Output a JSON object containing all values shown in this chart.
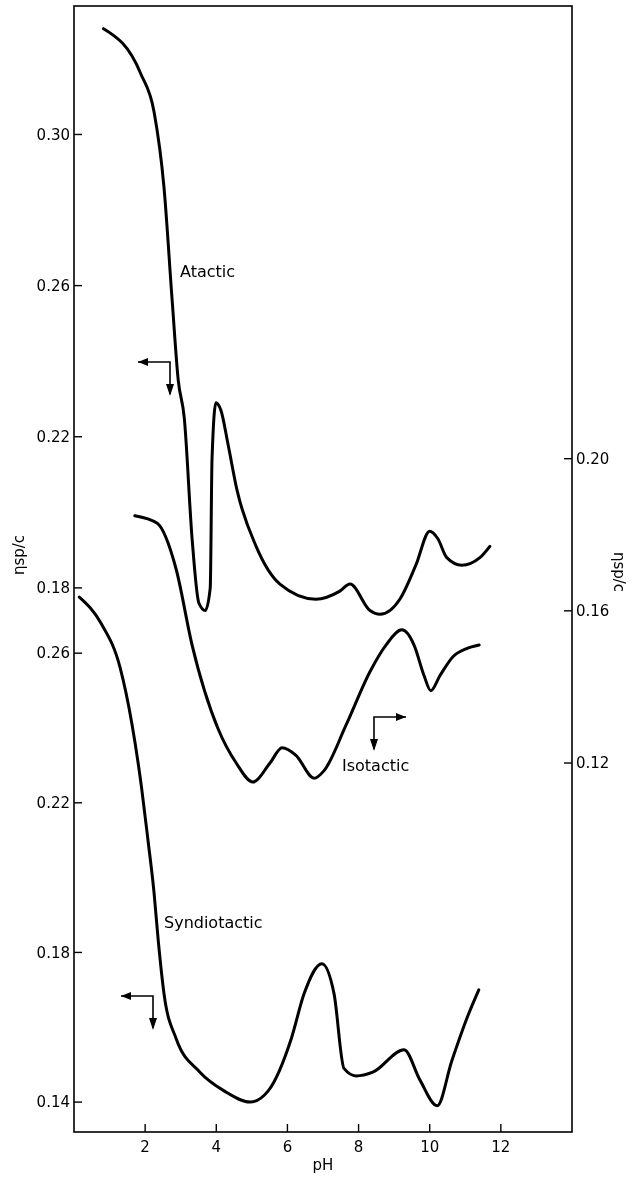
{
  "chart_data": {
    "type": "line",
    "xlabel": "pH",
    "ylabel": "ηsp/c",
    "y2label": "ηsp/c",
    "xlim": [
      0,
      14
    ],
    "xticks": [
      2,
      4,
      6,
      8,
      10,
      12
    ],
    "ylim": [
      0.036,
      0.334
    ],
    "yticks": [
      0.18,
      0.22,
      0.26,
      {
        "value": 0.3,
        "label": "0.30"
      }
    ],
    "y2lim": [
      0.023,
      0.319
    ],
    "y2ticks": [
      0.12,
      0.16,
      {
        "value": 0.2,
        "label": "0.20"
      }
    ],
    "y3lim": [
      0.132,
      0.433
    ],
    "y3ticks": [
      0.14,
      0.18,
      0.22,
      0.26
    ],
    "grid": false,
    "series": [
      {
        "name": "Atactic",
        "color": "#000000",
        "x": [
          0.83,
          1.88,
          2.25,
          2.53,
          2.76,
          2.93,
          3.1,
          3.32,
          3.51,
          3.69,
          3.83,
          3.88,
          3.99,
          4.13,
          4.33,
          4.58,
          5.12,
          5.79,
          6.8,
          7.45,
          7.76,
          8.32,
          8.6,
          9.16,
          9.61,
          10.0,
          10.23,
          10.48,
          10.9,
          11.41,
          11.69
        ],
        "values": [
          0.328,
          0.316,
          0.306,
          0.286,
          0.256,
          0.235,
          0.225,
          0.193,
          0.176,
          0.174,
          0.18,
          0.214,
          0.229,
          0.227,
          0.218,
          0.206,
          0.191,
          0.181,
          0.177,
          0.179,
          0.181,
          0.174,
          0.173,
          0.177,
          0.186,
          0.195,
          0.193,
          0.188,
          0.186,
          0.188,
          0.191
        ]
      },
      {
        "name": "Isotactic",
        "color": "#000000",
        "axis": "y2",
        "x": [
          1.71,
          2.34,
          2.87,
          3.32,
          4.05,
          4.56,
          5.03,
          5.51,
          5.85,
          6.24,
          6.75,
          7.03,
          7.65,
          8.32,
          8.77,
          9.22,
          9.56,
          9.84,
          10.03,
          10.29,
          10.66,
          11.02,
          11.39
        ],
        "values": [
          0.185,
          0.183,
          0.171,
          0.151,
          0.129,
          0.12,
          0.115,
          0.12,
          0.124,
          0.122,
          0.116,
          0.118,
          0.13,
          0.144,
          0.151,
          0.155,
          0.151,
          0.143,
          0.139,
          0.143,
          0.148,
          0.15,
          0.151
        ]
      },
      {
        "name": "Syndiotactic",
        "color": "#000000",
        "axis": "y3",
        "x": [
          0.15,
          0.76,
          1.3,
          1.63,
          1.9,
          2.08,
          2.25,
          2.37,
          2.53,
          2.87,
          3.54,
          4.22,
          4.95,
          5.46,
          6.11,
          6.47,
          6.97,
          7.31,
          7.59,
          7.93,
          8.4,
          9.28,
          9.72,
          10.21,
          10.62,
          11.07,
          11.38
        ],
        "values": [
          0.275,
          0.268,
          0.256,
          0.241,
          0.224,
          0.21,
          0.196,
          0.183,
          0.169,
          0.157,
          0.148,
          0.143,
          0.14,
          0.143,
          0.157,
          0.169,
          0.177,
          0.169,
          0.149,
          0.147,
          0.148,
          0.154,
          0.146,
          0.139,
          0.151,
          0.163,
          0.17
        ]
      }
    ]
  }
}
